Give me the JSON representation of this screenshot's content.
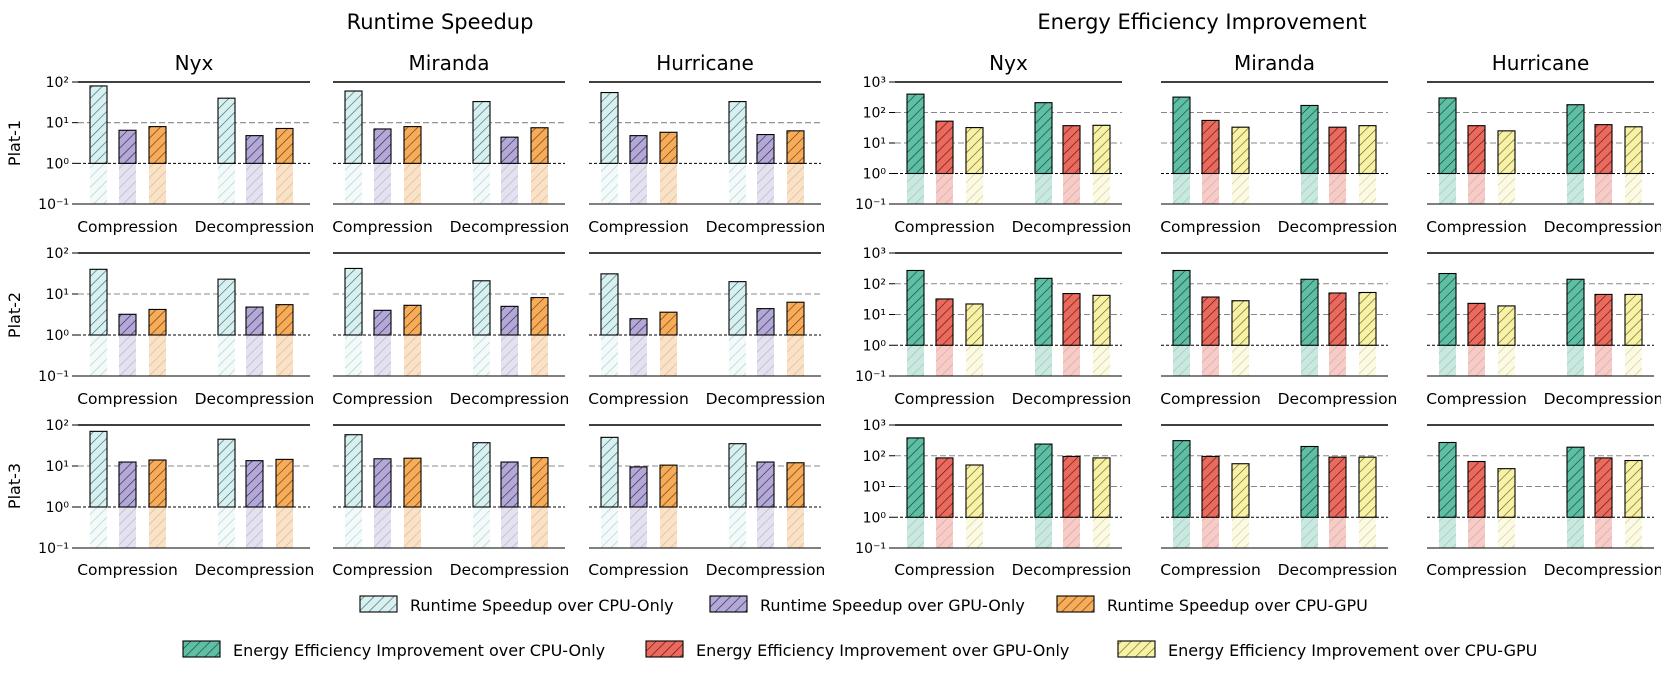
{
  "chart_data": {
    "type": "bar",
    "y_scale": "log",
    "groups": [
      {
        "title": "Runtime Speedup",
        "series": [
          {
            "name": "Runtime Speedup over CPU-Only",
            "color": "#d9f0f0",
            "hatch_color": "#3a6a70"
          },
          {
            "name": "Runtime Speedup over GPU-Only",
            "color": "#b3a8d6",
            "hatch_color": "#2e2650"
          },
          {
            "name": "Runtime Speedup over CPU-GPU",
            "color": "#f7ac5a",
            "hatch_color": "#6a3a08"
          }
        ],
        "ylim": [
          0.1,
          100
        ],
        "yticks": [
          {
            "value": 0.1,
            "label": "10⁻¹"
          },
          {
            "value": 1,
            "label": "10⁰"
          },
          {
            "value": 10,
            "label": "10¹"
          },
          {
            "value": 100,
            "label": "10²"
          }
        ],
        "ref_lines": [
          1,
          10
        ],
        "top_line": 100,
        "rows": [
          {
            "label": "Plat-1",
            "datasets": [
              {
                "name": "Nyx",
                "values": [
                  [
                    80,
                    6.5,
                    8
                  ],
                  [
                    40,
                    4.8,
                    7.2
                  ]
                ]
              },
              {
                "name": "Miranda",
                "values": [
                  [
                    60,
                    7,
                    8
                  ],
                  [
                    33,
                    4.4,
                    7.5
                  ]
                ]
              },
              {
                "name": "Hurricane",
                "values": [
                  [
                    55,
                    4.8,
                    5.8
                  ],
                  [
                    33,
                    5.1,
                    6.3
                  ]
                ]
              }
            ]
          },
          {
            "label": "Plat-2",
            "datasets": [
              {
                "name": "Nyx",
                "values": [
                  [
                    40,
                    3.2,
                    4.2
                  ],
                  [
                    23,
                    4.8,
                    5.5
                  ]
                ]
              },
              {
                "name": "Miranda",
                "values": [
                  [
                    42,
                    4,
                    5.3
                  ],
                  [
                    21,
                    5,
                    8.2
                  ]
                ]
              },
              {
                "name": "Hurricane",
                "values": [
                  [
                    31,
                    2.5,
                    3.6
                  ],
                  [
                    20,
                    4.4,
                    6.3
                  ]
                ]
              }
            ]
          },
          {
            "label": "Plat-3",
            "datasets": [
              {
                "name": "Nyx",
                "values": [
                  [
                    70,
                    12.5,
                    14
                  ],
                  [
                    45,
                    13.5,
                    14.5
                  ]
                ]
              },
              {
                "name": "Miranda",
                "values": [
                  [
                    58,
                    15,
                    15.5
                  ],
                  [
                    37,
                    12.5,
                    16
                  ]
                ]
              },
              {
                "name": "Hurricane",
                "values": [
                  [
                    50,
                    9.5,
                    10.5
                  ],
                  [
                    35,
                    12.5,
                    12
                  ]
                ]
              }
            ]
          }
        ]
      },
      {
        "title": "Energy Efficiency Improvement",
        "series": [
          {
            "name": "Energy Efficiency Improvement over CPU-Only",
            "color": "#5fbfa5",
            "hatch_color": "#14423a"
          },
          {
            "name": "Energy Efficiency Improvement over GPU-Only",
            "color": "#ea6a5e",
            "hatch_color": "#5a1510"
          },
          {
            "name": "Energy Efficiency Improvement over CPU-GPU",
            "color": "#f7f2a8",
            "hatch_color": "#6b6418"
          }
        ],
        "ylim": [
          0.1,
          1000
        ],
        "yticks": [
          {
            "value": 0.1,
            "label": "10⁻¹"
          },
          {
            "value": 1,
            "label": "10⁰"
          },
          {
            "value": 10,
            "label": "10¹"
          },
          {
            "value": 100,
            "label": "10²"
          },
          {
            "value": 1000,
            "label": "10³"
          }
        ],
        "ref_lines": [
          1,
          10,
          100
        ],
        "top_line": 1000,
        "rows": [
          {
            "label": "Plat-1",
            "datasets": [
              {
                "name": "Nyx",
                "values": [
                  [
                    400,
                    52,
                    32
                  ],
                  [
                    210,
                    37,
                    38
                  ]
                ]
              },
              {
                "name": "Miranda",
                "values": [
                  [
                    320,
                    55,
                    33
                  ],
                  [
                    170,
                    33,
                    37
                  ]
                ]
              },
              {
                "name": "Hurricane",
                "values": [
                  [
                    300,
                    37,
                    25
                  ],
                  [
                    180,
                    40,
                    34
                  ]
                ]
              }
            ]
          },
          {
            "label": "Plat-2",
            "datasets": [
              {
                "name": "Nyx",
                "values": [
                  [
                    270,
                    32,
                    22
                  ],
                  [
                    150,
                    48,
                    42
                  ]
                ]
              },
              {
                "name": "Miranda",
                "values": [
                  [
                    270,
                    37,
                    28
                  ],
                  [
                    140,
                    50,
                    52
                  ]
                ]
              },
              {
                "name": "Hurricane",
                "values": [
                  [
                    215,
                    23,
                    19
                  ],
                  [
                    140,
                    45,
                    45
                  ]
                ]
              }
            ]
          },
          {
            "label": "Plat-3",
            "datasets": [
              {
                "name": "Nyx",
                "values": [
                  [
                    380,
                    85,
                    50
                  ],
                  [
                    240,
                    95,
                    85
                  ]
                ]
              },
              {
                "name": "Miranda",
                "values": [
                  [
                    310,
                    95,
                    55
                  ],
                  [
                    200,
                    90,
                    90
                  ]
                ]
              },
              {
                "name": "Hurricane",
                "values": [
                  [
                    270,
                    65,
                    38
                  ],
                  [
                    190,
                    85,
                    70
                  ]
                ]
              }
            ]
          }
        ]
      }
    ],
    "categories": [
      "Compression",
      "Decompression"
    ]
  }
}
